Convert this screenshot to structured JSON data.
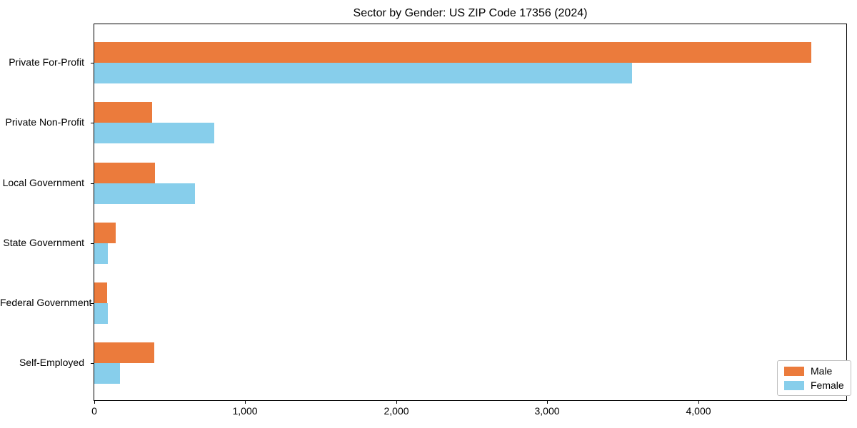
{
  "chart_data": {
    "type": "bar",
    "orientation": "horizontal",
    "title": "Sector by Gender: US ZIP Code 17356 (2024)",
    "categories": [
      "Private For-Profit",
      "Private Non-Profit",
      "Local Government",
      "State Government",
      "Federal Government",
      "Self-Employed"
    ],
    "series": [
      {
        "name": "Male",
        "color": "#EB7B3C",
        "values": [
          4750,
          385,
          400,
          140,
          85,
          395
        ]
      },
      {
        "name": "Female",
        "color": "#87CEEB",
        "values": [
          3560,
          795,
          665,
          90,
          90,
          170
        ]
      }
    ],
    "xlabel": "",
    "ylabel": "",
    "xlim": [
      0,
      4980
    ],
    "xticks": {
      "values": [
        0,
        1000,
        2000,
        3000,
        4000
      ],
      "labels": [
        "0",
        "1,000",
        "2,000",
        "3,000",
        "4,000"
      ]
    },
    "legend": {
      "position": "lower right",
      "entries": [
        "Male",
        "Female"
      ]
    },
    "grid": false,
    "colors": {
      "axis": "#000000",
      "background": "#FFFFFF",
      "legend_border": "#BFBFBF"
    }
  }
}
